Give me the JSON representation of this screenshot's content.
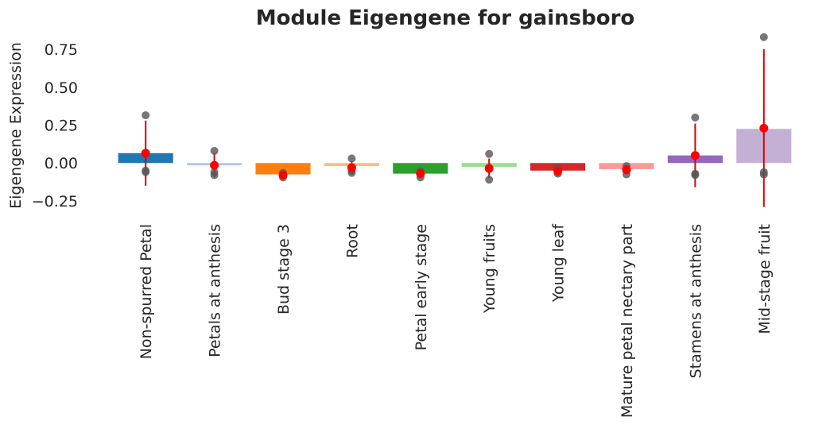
{
  "chart_data": {
    "type": "bar",
    "title": "Module Eigengene for gainsboro",
    "xlabel": "",
    "ylabel": "Eigengene Expression",
    "ylim": [
      -0.36,
      0.86
    ],
    "yticks": [
      0.75,
      0.5,
      0.25,
      0.0,
      -0.25
    ],
    "ytick_labels": [
      "0.75",
      "0.50",
      "0.25",
      "0.00",
      "−0.25"
    ],
    "grid": false,
    "categories": [
      "Non-spurred Petal",
      "Petals at anthesis",
      "Bud stage 3",
      "Root",
      "Petal early stage",
      "Young fruits",
      "Young leaf",
      "Mature petal nectary part",
      "Stamens at anthesis",
      "Mid-stage fruit"
    ],
    "values": [
      0.065,
      -0.015,
      -0.075,
      -0.02,
      -0.07,
      -0.025,
      -0.05,
      -0.04,
      0.05,
      0.225
    ],
    "colors": [
      "#1f77b4",
      "#aec7e8",
      "#ff7f0e",
      "#ffbb78",
      "#2ca02c",
      "#98df8a",
      "#d62728",
      "#ff9896",
      "#9467bd",
      "#c5b0d5"
    ],
    "mean": [
      0.065,
      -0.015,
      -0.08,
      -0.03,
      -0.07,
      -0.035,
      -0.055,
      -0.045,
      0.05,
      0.23
    ],
    "error": [
      0.215,
      0.08,
      0.02,
      0.04,
      0.025,
      0.065,
      0.015,
      0.03,
      0.21,
      0.52
    ],
    "points": [
      [
        0.315,
        -0.05,
        -0.06
      ],
      [
        0.08,
        -0.06,
        -0.08
      ],
      [
        -0.065,
        -0.08,
        -0.095
      ],
      [
        0.03,
        -0.05,
        -0.065
      ],
      [
        -0.055,
        -0.07,
        -0.095
      ],
      [
        0.06,
        -0.04,
        -0.11
      ],
      [
        -0.035,
        -0.055,
        -0.07
      ],
      [
        -0.02,
        -0.04,
        -0.075
      ],
      [
        0.3,
        -0.07,
        -0.08
      ],
      [
        0.83,
        -0.06,
        -0.075
      ]
    ],
    "mean_color": "#ff0000",
    "error_color": "#dd0000",
    "point_color": "#555555"
  }
}
